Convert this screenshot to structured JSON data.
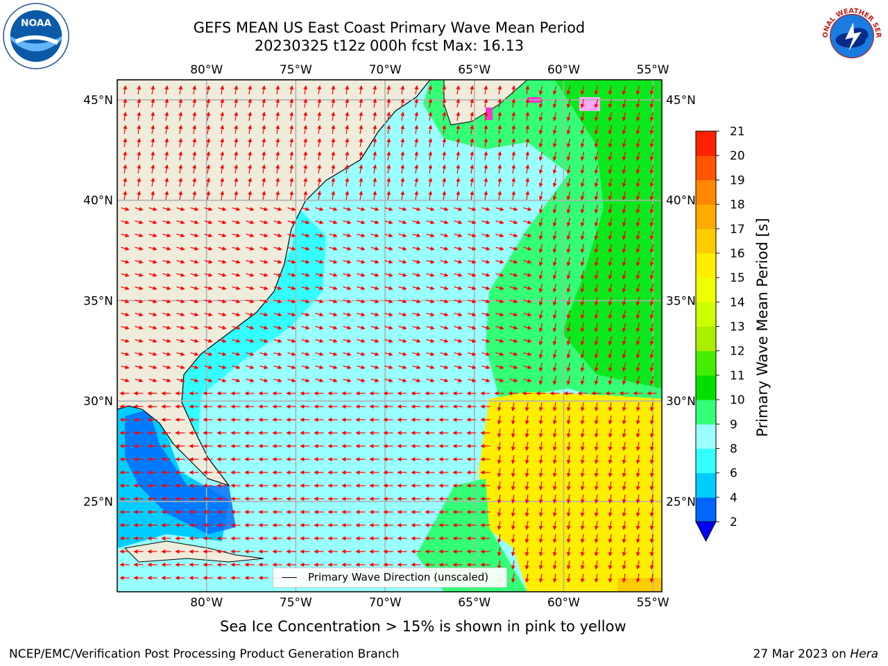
{
  "header": {
    "title_line1": "GEFS MEAN US East Coast Primary Wave Mean Period",
    "title_line2": "20230325 t12z 000h fcst   Max: 16.13"
  },
  "logos": {
    "left": "noaa-logo",
    "left_text": "NOAA",
    "right": "nws-logo",
    "right_text": "NATIONAL WEATHER SERVICE"
  },
  "map": {
    "lon_labels": [
      "80°W",
      "75°W",
      "70°W",
      "65°W",
      "60°W",
      "55°W"
    ],
    "lat_labels": [
      "45°N",
      "40°N",
      "35°N",
      "30°N",
      "25°N"
    ],
    "lon_values": [
      -80,
      -75,
      -70,
      -65,
      -60,
      -55
    ],
    "lat_values": [
      45,
      40,
      35,
      30,
      25
    ],
    "extent": {
      "lon": [
        -85,
        -54.5
      ],
      "lat": [
        20.5,
        46
      ]
    },
    "land_color": "#efecdc",
    "grid_color": "#b0b0b0",
    "arrow_color": "#ff0000"
  },
  "legend": {
    "label": "Primary Wave Direction (unscaled)"
  },
  "colorbar": {
    "label": "Primary Wave Mean Period [s]",
    "ticks": [
      "2",
      "4",
      "6",
      "8",
      "9",
      "10",
      "11",
      "12",
      "13",
      "14",
      "15",
      "16",
      "17",
      "18",
      "19",
      "20",
      "21"
    ],
    "colors": [
      "#0066ff",
      "#00ccff",
      "#33ffff",
      "#99ffff",
      "#33ff77",
      "#00e000",
      "#44ee00",
      "#aaee00",
      "#ccff00",
      "#eeff00",
      "#ffee00",
      "#ffcc00",
      "#ffaa00",
      "#ff8800",
      "#ff5500",
      "#ff2200",
      "#ff0000"
    ],
    "under_color": "#0000ff"
  },
  "notes": {
    "ice": "Sea Ice Concentration > 15% is shown in pink to yellow"
  },
  "footer": {
    "left": "NCEP/EMC/Verification Post Processing Product Generation Branch",
    "right_date": "27 Mar 2023 on ",
    "right_host": "Hera"
  }
}
